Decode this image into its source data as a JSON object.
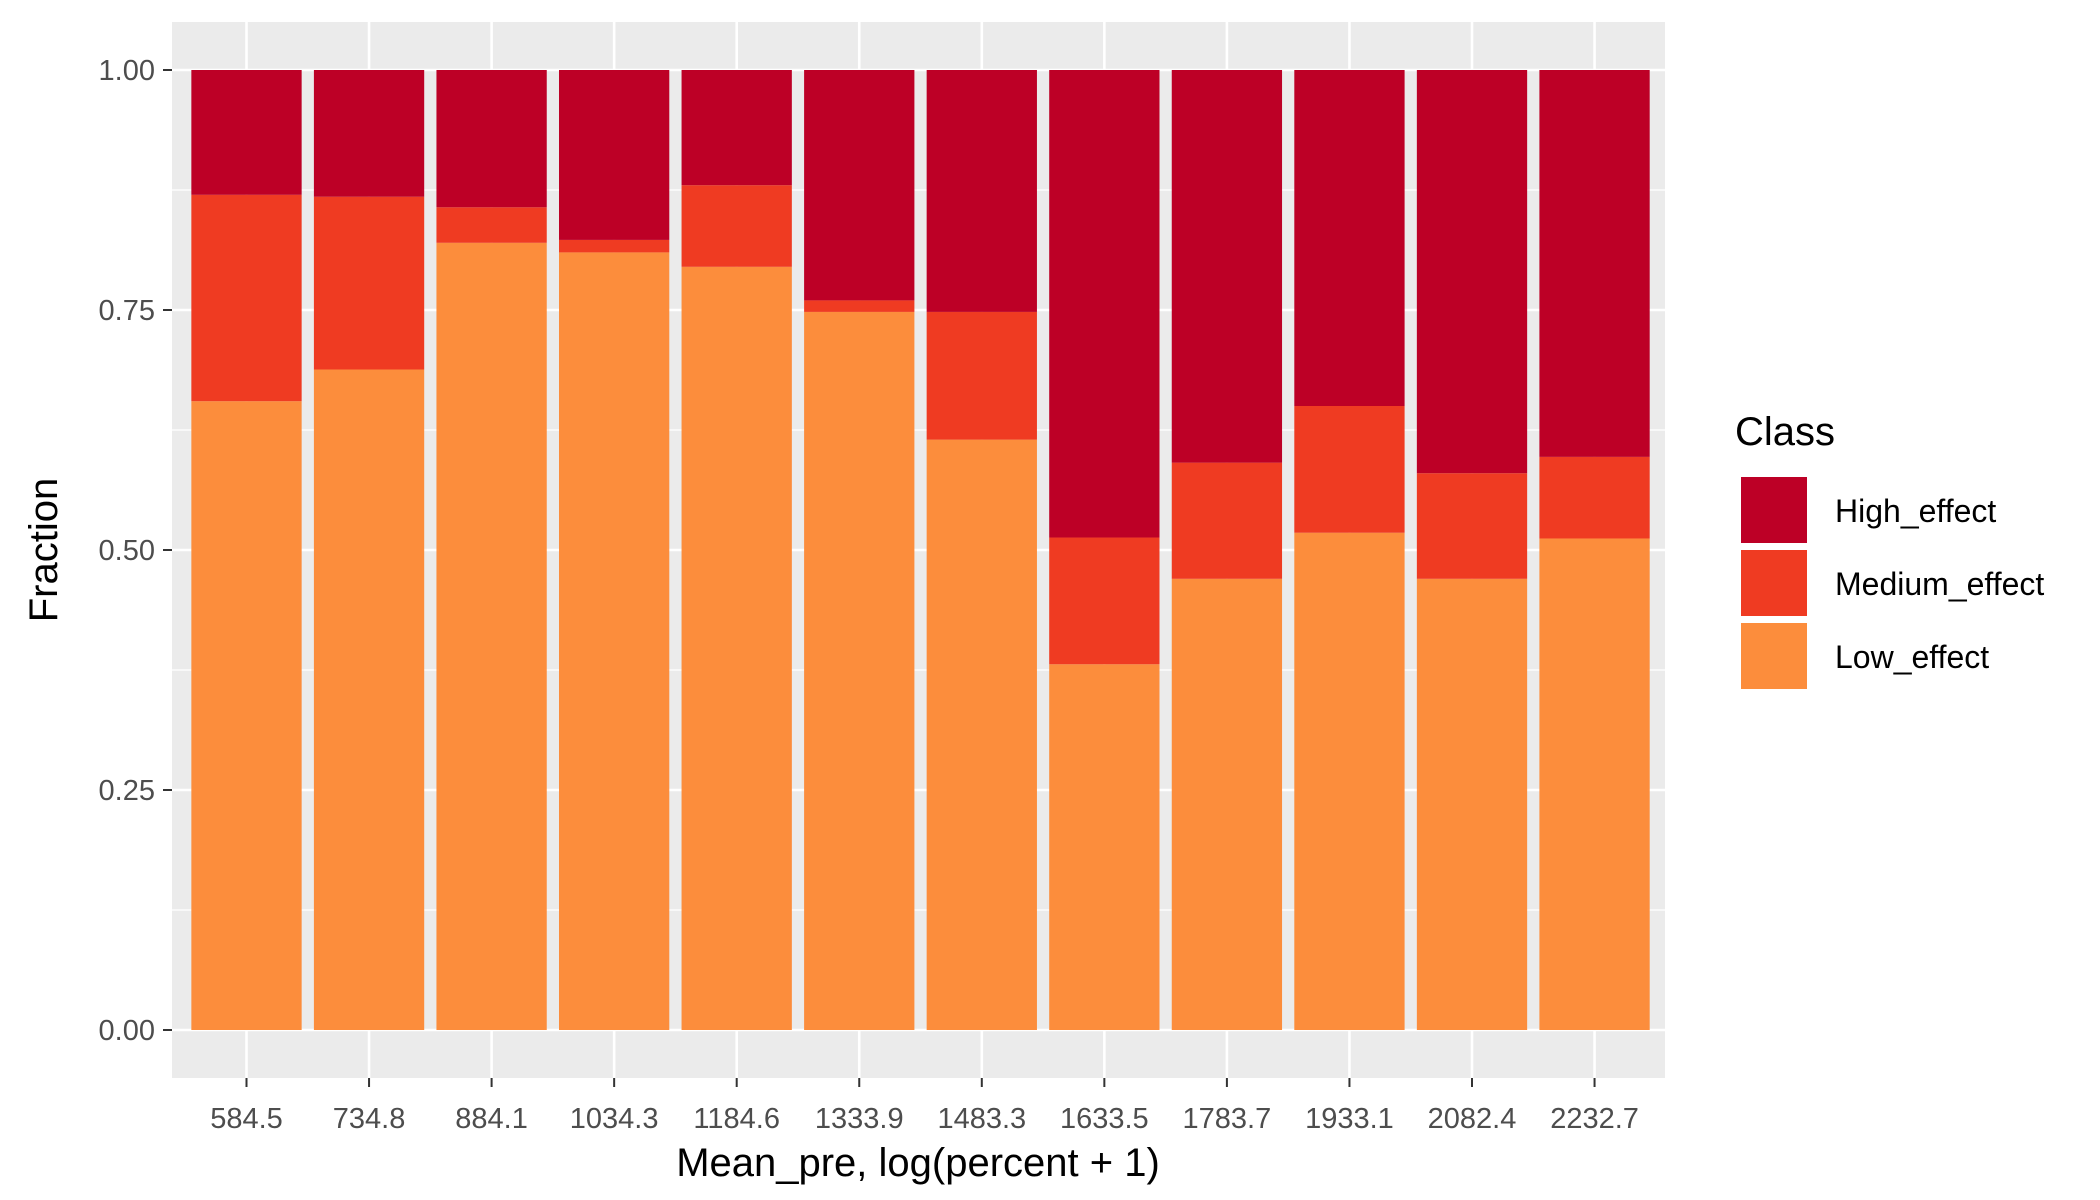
{
  "chart_data": {
    "type": "bar",
    "stacked": true,
    "xlabel": "Mean_pre, log(percent + 1)",
    "ylabel": "Fraction",
    "ylim": [
      0,
      1
    ],
    "yticks": [
      "0.00",
      "0.25",
      "0.50",
      "0.75",
      "1.00"
    ],
    "ytick_values": [
      0,
      0.25,
      0.5,
      0.75,
      1.0
    ],
    "grid": true,
    "legend_position": "right",
    "legend_title": "Class",
    "categories": [
      "584.5",
      "734.8",
      "884.1",
      "1034.3",
      "1184.6",
      "1333.9",
      "1483.3",
      "1633.5",
      "1783.7",
      "1933.1",
      "2082.4",
      "2232.7"
    ],
    "series": [
      {
        "name": "Low_effect",
        "color": "#fc8d3c",
        "values": [
          0.655,
          0.688,
          0.82,
          0.81,
          0.795,
          0.748,
          0.615,
          0.381,
          0.47,
          0.518,
          0.47,
          0.512
        ]
      },
      {
        "name": "Medium_effect",
        "color": "#ef3b22",
        "values": [
          0.215,
          0.18,
          0.037,
          0.013,
          0.085,
          0.012,
          0.133,
          0.132,
          0.121,
          0.132,
          0.11,
          0.085
        ]
      },
      {
        "name": "High_effect",
        "color": "#bd0026",
        "values": [
          0.13,
          0.132,
          0.143,
          0.177,
          0.12,
          0.24,
          0.252,
          0.487,
          0.409,
          0.35,
          0.42,
          0.403
        ]
      }
    ],
    "legend_order": [
      "High_effect",
      "Medium_effect",
      "Low_effect"
    ],
    "panel_color": "#ebebeb",
    "grid_color": "#ffffff"
  }
}
